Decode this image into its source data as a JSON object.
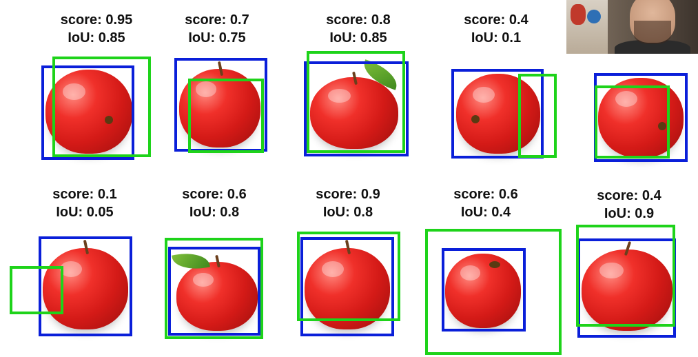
{
  "accent_colors": {
    "ground_truth_box": "#0a1fd9",
    "prediction_box": "#1ed31a"
  },
  "examples": [
    {
      "score_text": "score: 0.95",
      "iou_text": "IoU: 0.85"
    },
    {
      "score_text": "score: 0.7",
      "iou_text": "IoU: 0.75"
    },
    {
      "score_text": "score: 0.8",
      "iou_text": "IoU: 0.85"
    },
    {
      "score_text": "score: 0.4",
      "iou_text": "IoU: 0.1"
    },
    {
      "score_text": "",
      "iou_text": ""
    },
    {
      "score_text": "score: 0.1",
      "iou_text": "IoU: 0.05"
    },
    {
      "score_text": "score: 0.6",
      "iou_text": "IoU: 0.8"
    },
    {
      "score_text": "score: 0.9",
      "iou_text": "IoU: 0.8"
    },
    {
      "score_text": "score: 0.6",
      "iou_text": "IoU: 0.4"
    },
    {
      "score_text": "score: 0.4",
      "iou_text": "IoU: 0.9"
    }
  ],
  "webcam_overlay": {
    "icon": "presenter-webcam"
  }
}
